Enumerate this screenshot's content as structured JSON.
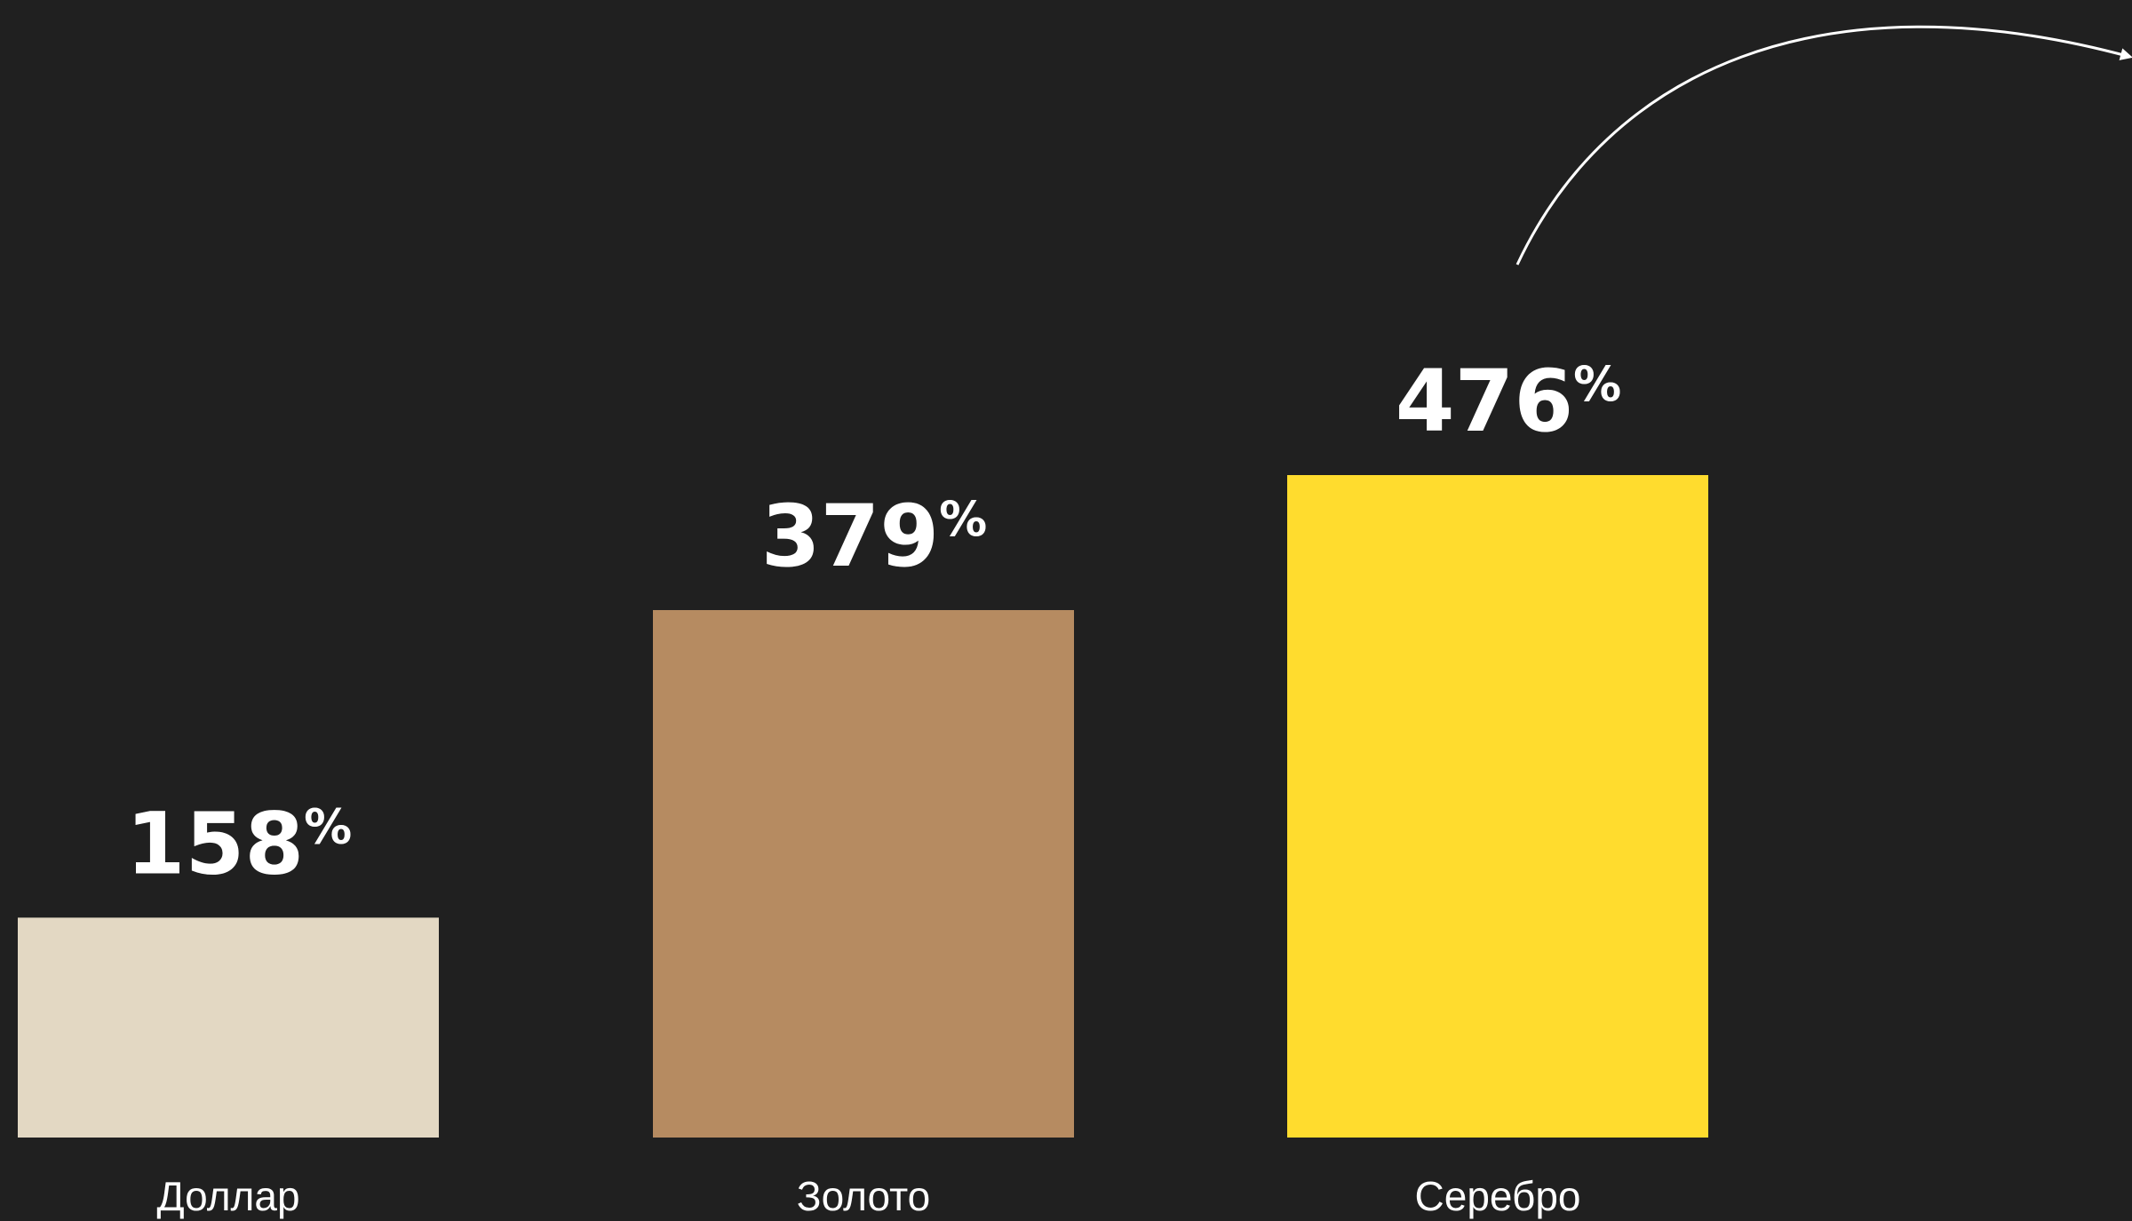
{
  "chart_data": {
    "type": "bar",
    "categories": [
      "Доллар",
      "Золото",
      "Серебро"
    ],
    "values": [
      158,
      379,
      476
    ],
    "value_labels": [
      "158",
      "379",
      "476"
    ],
    "value_suffix": "%",
    "colors": [
      "#e3d8c3",
      "#b68b61",
      "#ffdc2e"
    ],
    "background": "#202020",
    "annotation": "curved-arrow-up-right"
  }
}
